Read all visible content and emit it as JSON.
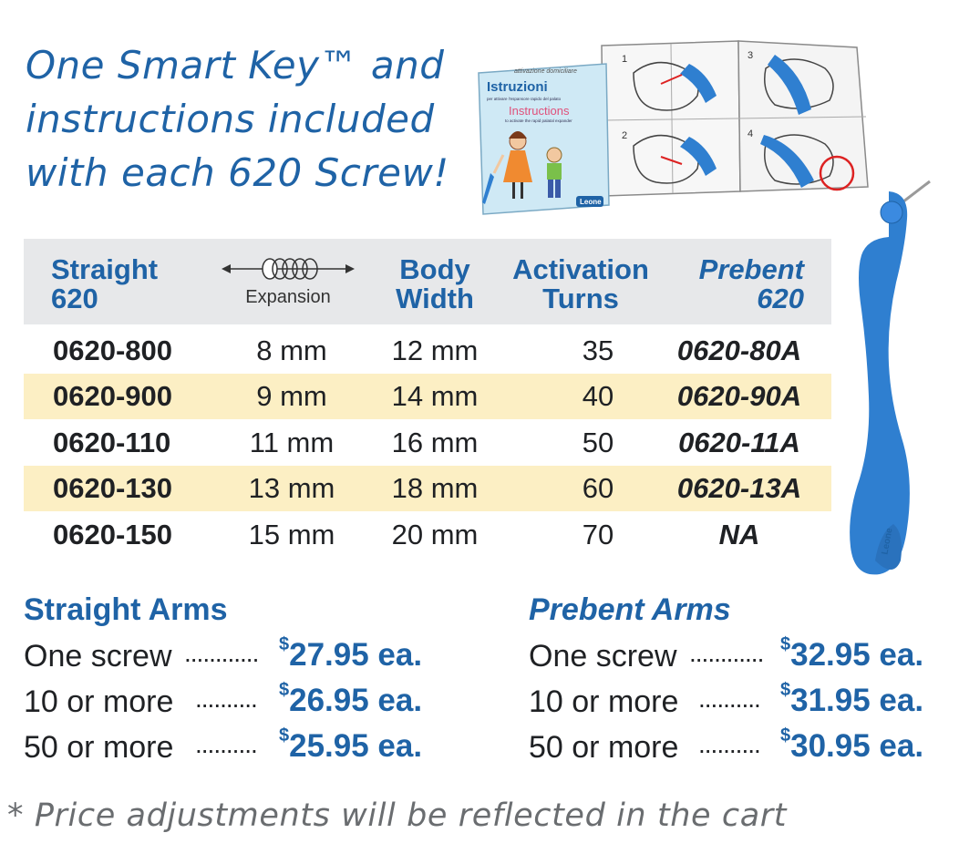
{
  "headline": {
    "lines": [
      "One Smart Key™ and",
      "instructions included",
      "with each 620 Screw!"
    ]
  },
  "booklet": {
    "cover_title": "Istruzioni",
    "cover_subtitle": "Instructions",
    "cover_small_text": "per attivare l'espansore rapido del palato",
    "cover_small_text_en": "to activate the rapid palatal expander",
    "inner_header": "attivazione domiciliare",
    "logo_text": "Leone",
    "panel_numbers": [
      "1",
      "2",
      "3",
      "4"
    ]
  },
  "key": {
    "logo_text": "Leone"
  },
  "table": {
    "headers": {
      "straight": [
        "Straight",
        "620"
      ],
      "expansion": "Expansion",
      "body_width": [
        "Body",
        "Width"
      ],
      "activation": [
        "Activation",
        "Turns"
      ],
      "prebent": [
        "Prebent",
        "620"
      ]
    },
    "rows": [
      {
        "straight": "0620-800",
        "expansion": "8 mm",
        "body_width": "12 mm",
        "turns": "35",
        "prebent": "0620-80A",
        "highlight": false
      },
      {
        "straight": "0620-900",
        "expansion": "9 mm",
        "body_width": "14 mm",
        "turns": "40",
        "prebent": "0620-90A",
        "highlight": true
      },
      {
        "straight": "0620-110",
        "expansion": "11 mm",
        "body_width": "16 mm",
        "turns": "50",
        "prebent": "0620-11A",
        "highlight": false
      },
      {
        "straight": "0620-130",
        "expansion": "13 mm",
        "body_width": "18 mm",
        "turns": "60",
        "prebent": "0620-13A",
        "highlight": true
      },
      {
        "straight": "0620-150",
        "expansion": "15 mm",
        "body_width": "20 mm",
        "turns": "70",
        "prebent": "NA",
        "highlight": false
      }
    ]
  },
  "pricing": {
    "straight": {
      "title": "Straight  Arms",
      "rows": [
        {
          "label": "One screw",
          "dots": "............",
          "currency": "$",
          "price": "27.95 ea."
        },
        {
          "label": "10 or more",
          "dots": "..........",
          "currency": "$",
          "price": "26.95 ea."
        },
        {
          "label": "50 or more",
          "dots": "..........",
          "currency": "$",
          "price": "25.95 ea."
        }
      ]
    },
    "prebent": {
      "title": "Prebent Arms",
      "rows": [
        {
          "label": "One screw",
          "dots": "............",
          "currency": "$",
          "price": "32.95 ea."
        },
        {
          "label": "10 or more",
          "dots": "..........",
          "currency": "$",
          "price": "31.95 ea."
        },
        {
          "label": "50 or more",
          "dots": "..........",
          "currency": "$",
          "price": "30.95 ea."
        }
      ]
    }
  },
  "note": "* Price adjustments will be reflected in the cart",
  "colors": {
    "brand_blue": "#1f63a6",
    "header_gray": "#e7e8ea",
    "row_highlight": "#fcefc4",
    "key_blue": "#2f7fd0"
  }
}
